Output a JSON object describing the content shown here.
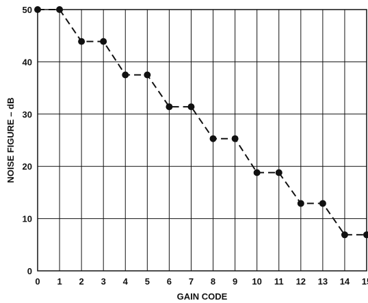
{
  "chart_data": {
    "type": "line",
    "xlabel": "GAIN CODE",
    "ylabel": "NOISE FIGURE – dB",
    "xlim": [
      0,
      15
    ],
    "ylim": [
      0,
      50
    ],
    "x_ticks": [
      0,
      1,
      2,
      3,
      4,
      5,
      6,
      7,
      8,
      9,
      10,
      11,
      12,
      13,
      14,
      15
    ],
    "y_ticks": [
      0,
      10,
      20,
      30,
      40,
      50
    ],
    "grid": true,
    "line_style": "dashed",
    "marker": "filled-circle",
    "series": [
      {
        "x": [
          0,
          1,
          2,
          3,
          4,
          5,
          6,
          7,
          8,
          9,
          10,
          11,
          12,
          13,
          14,
          15
        ],
        "y": [
          50,
          50,
          43.9,
          43.9,
          37.5,
          37.5,
          31.4,
          31.4,
          25.3,
          25.3,
          18.8,
          18.8,
          12.9,
          12.9,
          6.9,
          6.9
        ]
      }
    ]
  }
}
